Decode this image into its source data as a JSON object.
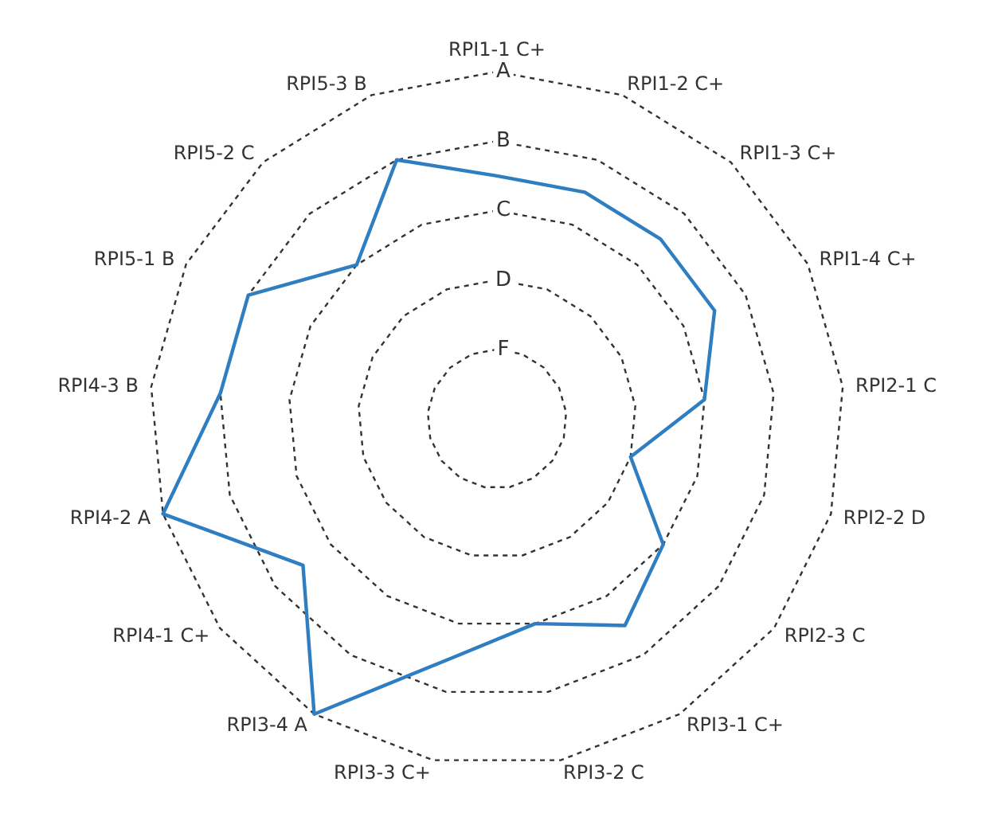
{
  "chart_data": {
    "type": "radar",
    "categories": [
      "RPI1-1 C+",
      "RPI1-2 C+",
      "RPI1-3 C+",
      "RPI1-4 C+",
      "RPI2-1 C",
      "RPI2-2 D",
      "RPI2-3 C",
      "RPI3-1 C+",
      "RPI3-2 C",
      "RPI3-3 C+",
      "RPI3-4 A",
      "RPI4-1 C+",
      "RPI4-2 A",
      "RPI4-3 B",
      "RPI5-1 B",
      "RPI5-2 C",
      "RPI5-3 B"
    ],
    "series": [
      {
        "color": "#2e7ec1",
        "values": [
          3.5,
          3.5,
          3.5,
          3.5,
          3,
          2,
          3,
          3.5,
          3,
          3.5,
          5,
          3.5,
          5,
          4,
          4,
          3,
          4
        ]
      }
    ],
    "ylim": [
      0,
      5
    ],
    "yticks": [
      {
        "value": 1,
        "label": "F"
      },
      {
        "value": 2,
        "label": "D"
      },
      {
        "value": 3,
        "label": "C"
      },
      {
        "value": 4,
        "label": "B"
      },
      {
        "value": 5,
        "label": "A"
      }
    ],
    "marker": "none",
    "line_style": "solid"
  }
}
